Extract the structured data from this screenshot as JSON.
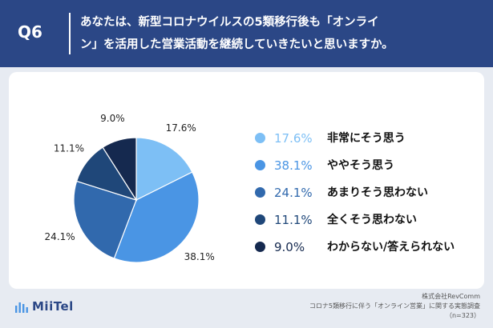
{
  "header": {
    "question_no": "Q6",
    "title_line1": "あなたは、新型コロナウイルスの5類移行後も「オンライ",
    "title_line2": "ン」を活用した営業活動を継続していきたいと思いますか。"
  },
  "chart_data": {
    "type": "pie",
    "slices": [
      {
        "label": "非常にそう思う",
        "value": 17.6,
        "value_text": "17.6%",
        "color": "#7dbff5"
      },
      {
        "label": "ややそう思う",
        "value": 38.1,
        "value_text": "38.1%",
        "color": "#4a95e4"
      },
      {
        "label": "あまりそう思わない",
        "value": 24.1,
        "value_text": "24.1%",
        "color": "#3169ad"
      },
      {
        "label": "全くそう思わない",
        "value": 11.1,
        "value_text": "11.1%",
        "color": "#1f4779"
      },
      {
        "label": "わからない/答えられない",
        "value": 9.0,
        "value_text": "9.0%",
        "color": "#15294f"
      }
    ],
    "legend_position": "right"
  },
  "footer": {
    "logo_text": "MiiTel",
    "company": "株式会社RevComm",
    "survey": "コロナ5類移行に伴う「オンライン営業」に関する実態調査",
    "sample": "（n=323）"
  }
}
